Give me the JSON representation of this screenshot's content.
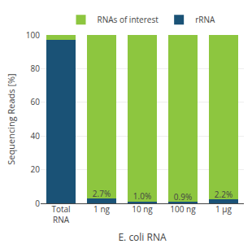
{
  "chart_data": {
    "type": "bar",
    "stacked": true,
    "categories": [
      "Total\nRNA",
      "1 ng",
      "10 ng",
      "100 ng",
      "1 μg"
    ],
    "series": [
      {
        "name": "rRNA",
        "color": "#1a5276",
        "values": [
          97.0,
          2.7,
          1.0,
          0.9,
          2.2
        ],
        "data_labels": true,
        "value_labels": [
          null,
          "2.7%",
          "1.0%",
          "0.9%",
          "2.2%"
        ]
      },
      {
        "name": "RNAs of interest",
        "color": "#8dc63f",
        "values": [
          3.0,
          97.3,
          99.0,
          99.1,
          97.8
        ]
      }
    ],
    "ylabel": "Sequencing Reads [%]",
    "xlabel": "E. coli RNA",
    "ylim": [
      0,
      100
    ],
    "yticks": [
      0,
      20,
      40,
      60,
      80,
      100
    ],
    "grid": true,
    "legend": "top"
  }
}
